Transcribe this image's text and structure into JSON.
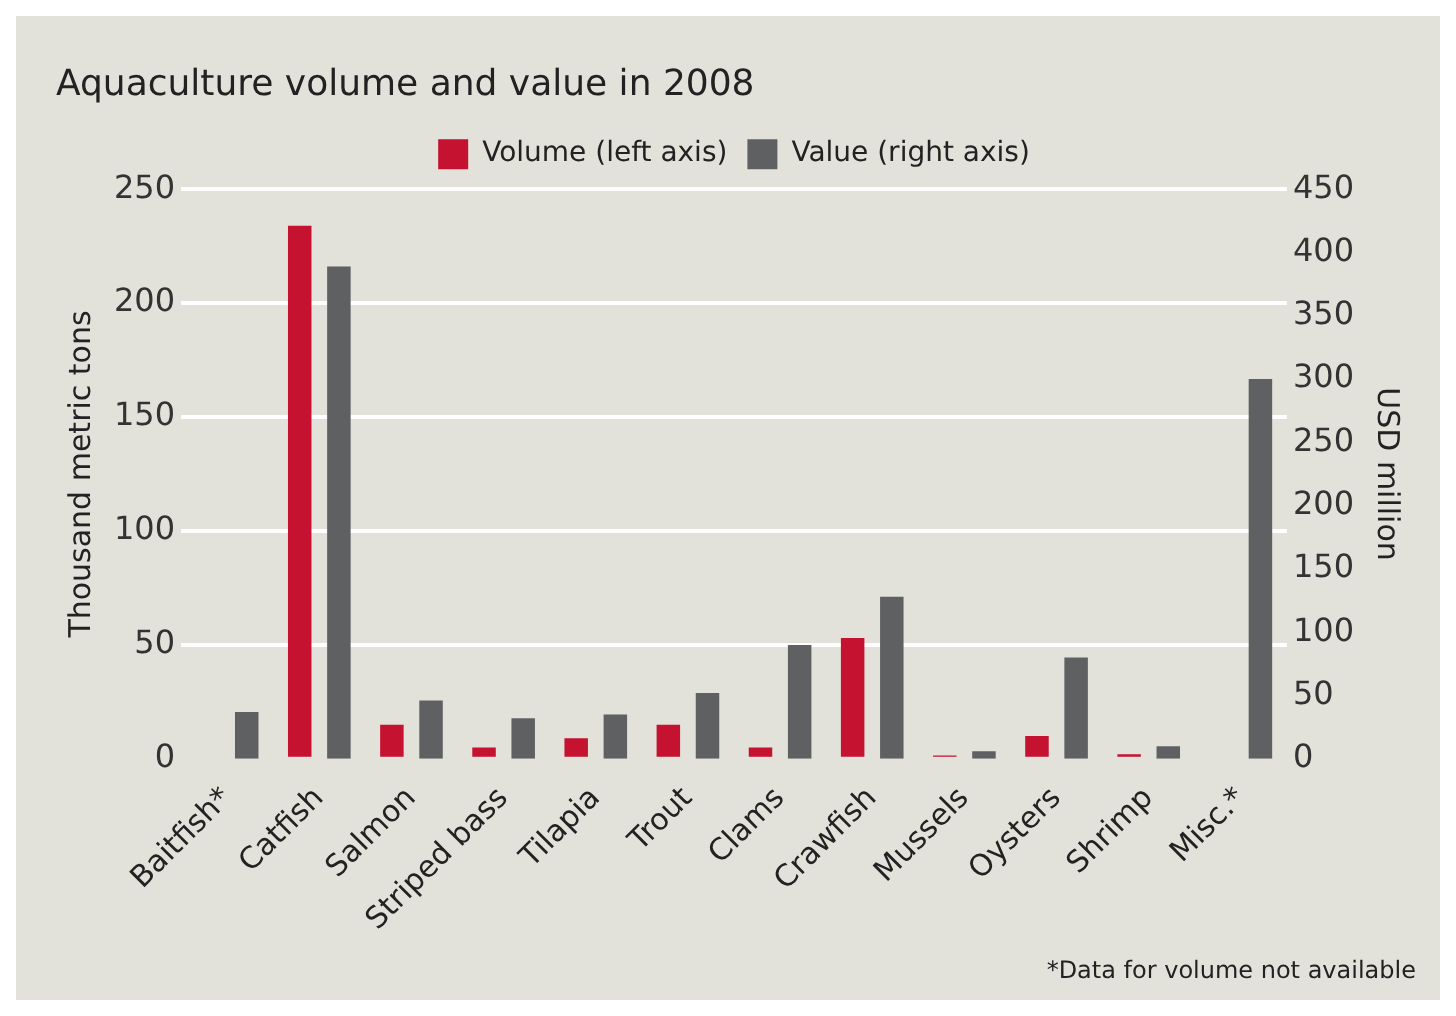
{
  "chart_data": {
    "type": "bar",
    "title": "Aquaculture volume and value in 2008",
    "categories": [
      "Baitfish*",
      "Catfish",
      "Salmon",
      "Striped bass",
      "Tilapia",
      "Trout",
      "Clams",
      "Crawfish",
      "Mussels",
      "Oysters",
      "Shrimp",
      "Misc.*"
    ],
    "series": [
      {
        "name": "Volume (left axis)",
        "color": "#c41230",
        "values": [
          null,
          234,
          15,
          5,
          9,
          15,
          5,
          53,
          1.5,
          10,
          2,
          null
        ]
      },
      {
        "name": "Value (right axis)",
        "color": "#5f6062",
        "axis": "y2",
        "values": [
          37,
          389,
          46,
          32,
          35,
          52,
          90,
          128,
          6,
          80,
          10,
          300
        ]
      }
    ],
    "ylabel": "Thousand metric tons",
    "y2label": "USD million",
    "ylim": [
      0,
      250
    ],
    "yticks": [
      0,
      50,
      100,
      150,
      200,
      250
    ],
    "y2lim": [
      0,
      450
    ],
    "y2ticks": [
      0,
      50,
      100,
      150,
      200,
      250,
      300,
      350,
      400,
      450
    ],
    "grid": "y",
    "legend": "top",
    "annotations": [
      "*Data for volume not available"
    ]
  }
}
